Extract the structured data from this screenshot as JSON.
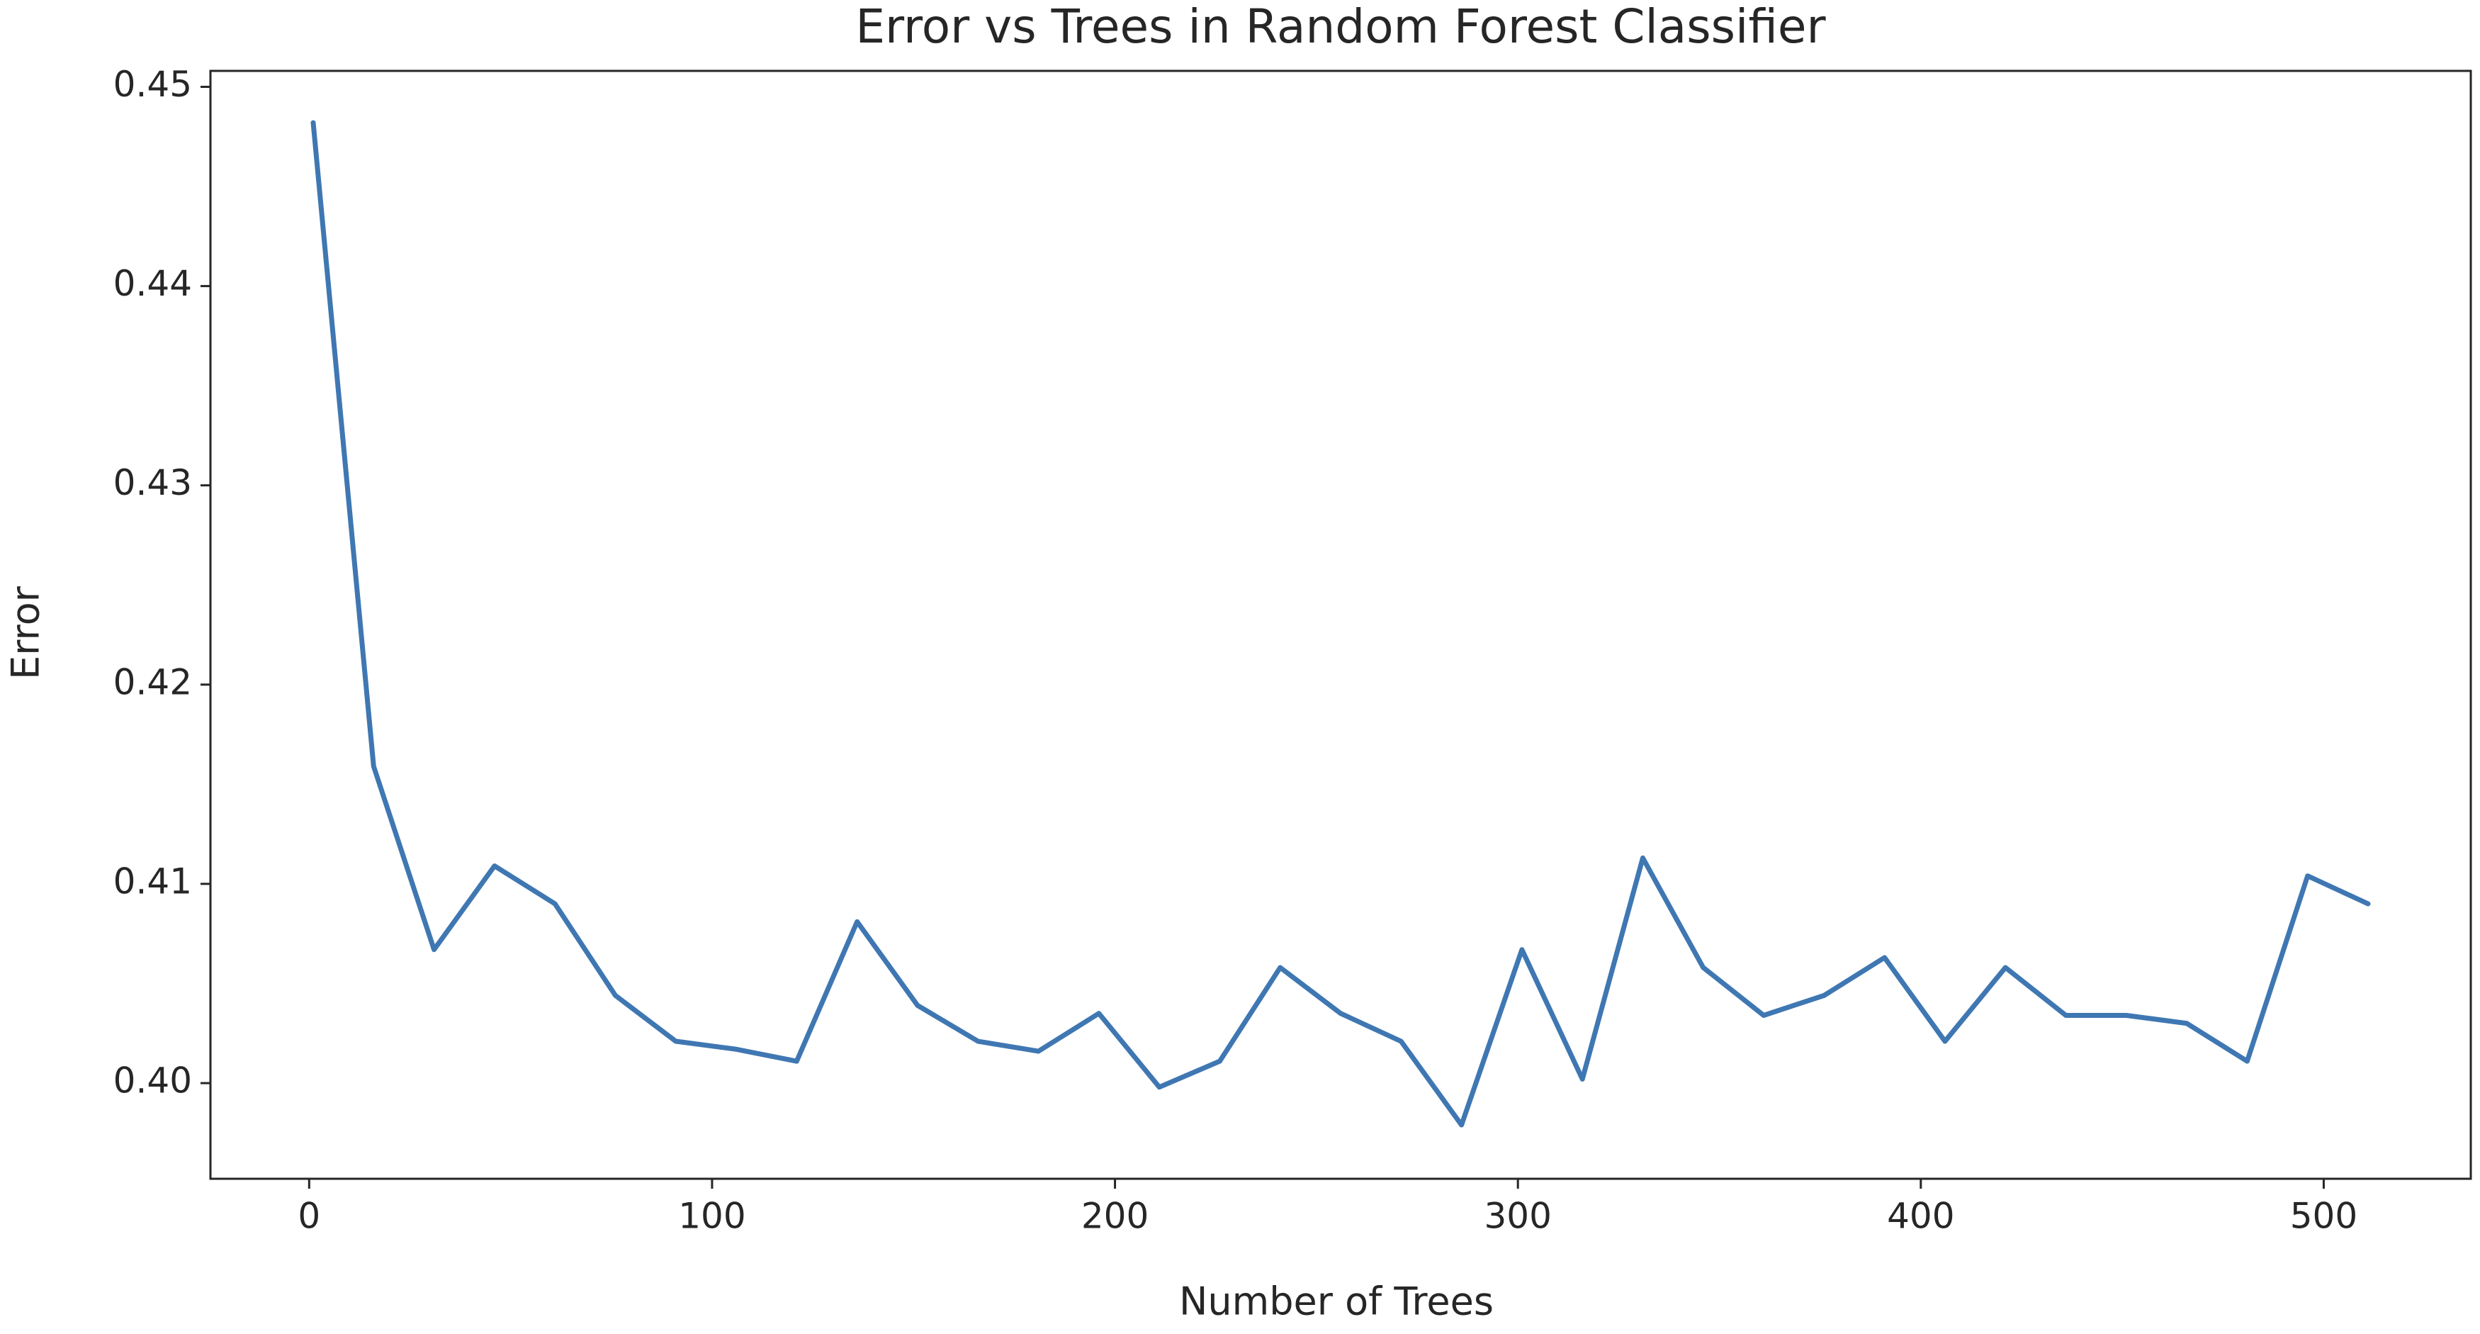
{
  "chart_data": {
    "type": "line",
    "title": "Error vs Trees in Random Forest Classifier",
    "x_label": "Number of Trees",
    "y_label": "Error",
    "x": [
      1,
      16,
      31,
      46,
      61,
      76,
      91,
      106,
      121,
      136,
      151,
      166,
      181,
      196,
      211,
      226,
      241,
      256,
      271,
      286,
      301,
      316,
      331,
      346,
      361,
      376,
      391,
      406,
      421,
      436,
      451,
      466,
      481,
      496,
      511
    ],
    "series": [
      {
        "name": "Error",
        "color": "#3f77b2",
        "values": [
          0.4482,
          0.4159,
          0.4067,
          0.4109,
          0.409,
          0.4044,
          0.4021,
          0.4017,
          0.4011,
          0.4081,
          0.4039,
          0.4021,
          0.4016,
          0.4035,
          0.3998,
          0.4011,
          0.4058,
          0.4035,
          0.4021,
          0.3979,
          0.4067,
          0.4002,
          0.4113,
          0.4058,
          0.4034,
          0.4044,
          0.4063,
          0.4021,
          0.4058,
          0.4034,
          0.4034,
          0.403,
          0.4011,
          0.4104,
          0.409
        ]
      }
    ],
    "xlim": [
      -24.5,
      536.5
    ],
    "ylim": [
      0.3952,
      0.4508
    ],
    "xticks": [
      0,
      100,
      200,
      300,
      400,
      500
    ],
    "yticks": [
      {
        "value": 0.4,
        "label": "0.40"
      },
      0.41,
      0.42,
      0.43,
      0.44,
      0.45
    ],
    "grid": false
  }
}
